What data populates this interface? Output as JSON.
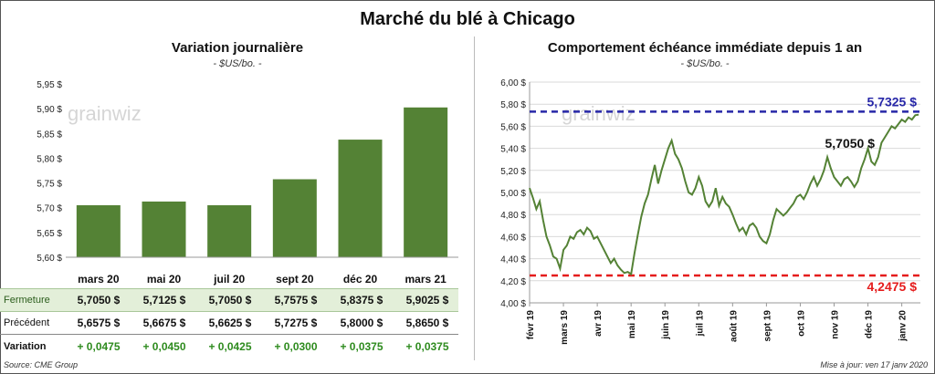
{
  "page": {
    "title": "Marché du blé à Chicago",
    "source": "Source: CME Group",
    "update": "Mise à jour: ven 17 janv 2020",
    "watermark": "grainwiz",
    "colors": {
      "bar": "#548235",
      "line": "#548235",
      "upper": "#2727a8",
      "lower": "#e51c1c",
      "close_row_bg": "#e3efd9",
      "variation": "#2e8b1e"
    }
  },
  "chart_data": [
    {
      "type": "bar",
      "title": "Variation journalière",
      "subtitle": "- $US/bo. -",
      "categories": [
        "mars 20",
        "mai 20",
        "juil 20",
        "sept 20",
        "déc 20",
        "mars 21"
      ],
      "values": [
        5.705,
        5.7125,
        5.705,
        5.7575,
        5.8375,
        5.9025
      ],
      "ylim": [
        5.6,
        5.95
      ],
      "yticks": [
        "5,60 $",
        "5,65 $",
        "5,70 $",
        "5,75 $",
        "5,80 $",
        "5,85 $",
        "5,90 $",
        "5,95 $"
      ],
      "grid": false
    },
    {
      "type": "line",
      "title": "Comportement échéance immédiate depuis 1 an",
      "subtitle": "- $US/bo. -",
      "ylim": [
        4.0,
        6.0
      ],
      "yticks": [
        "4,00 $",
        "4,20 $",
        "4,40 $",
        "4,60 $",
        "4,80 $",
        "5,00 $",
        "5,20 $",
        "5,40 $",
        "5,60 $",
        "5,80 $",
        "6,00 $"
      ],
      "xticks": [
        "févr 19",
        "mars 19",
        "avr 19",
        "mai 19",
        "juin 19",
        "juil 19",
        "août 19",
        "sept 19",
        "oct 19",
        "nov 19",
        "déc 19",
        "janv 20"
      ],
      "x_range": [
        0,
        11.55
      ],
      "x": [
        0,
        0.1,
        0.2,
        0.3,
        0.4,
        0.5,
        0.6,
        0.7,
        0.8,
        0.9,
        1.0,
        1.1,
        1.2,
        1.3,
        1.4,
        1.5,
        1.6,
        1.7,
        1.8,
        1.9,
        2.0,
        2.1,
        2.2,
        2.3,
        2.4,
        2.5,
        2.6,
        2.7,
        2.8,
        2.9,
        3.0,
        3.1,
        3.2,
        3.3,
        3.4,
        3.5,
        3.6,
        3.7,
        3.8,
        3.9,
        4.0,
        4.1,
        4.2,
        4.3,
        4.4,
        4.5,
        4.6,
        4.7,
        4.8,
        4.9,
        5.0,
        5.1,
        5.2,
        5.3,
        5.4,
        5.5,
        5.6,
        5.7,
        5.8,
        5.9,
        6.0,
        6.1,
        6.2,
        6.3,
        6.4,
        6.5,
        6.6,
        6.7,
        6.8,
        6.9,
        7.0,
        7.1,
        7.2,
        7.3,
        7.4,
        7.5,
        7.6,
        7.7,
        7.8,
        7.9,
        8.0,
        8.1,
        8.2,
        8.3,
        8.4,
        8.5,
        8.6,
        8.7,
        8.8,
        8.9,
        9.0,
        9.1,
        9.2,
        9.3,
        9.4,
        9.5,
        9.6,
        9.7,
        9.8,
        9.9,
        10.0,
        10.1,
        10.2,
        10.3,
        10.4,
        10.5,
        10.6,
        10.7,
        10.8,
        10.9,
        11.0,
        11.1,
        11.2,
        11.3,
        11.4,
        11.5
      ],
      "y": [
        5.04,
        4.95,
        4.85,
        4.92,
        4.75,
        4.6,
        4.52,
        4.42,
        4.4,
        4.31,
        4.48,
        4.52,
        4.6,
        4.58,
        4.64,
        4.66,
        4.62,
        4.68,
        4.65,
        4.58,
        4.6,
        4.54,
        4.48,
        4.42,
        4.36,
        4.4,
        4.34,
        4.3,
        4.27,
        4.28,
        4.26,
        4.45,
        4.62,
        4.78,
        4.9,
        4.98,
        5.12,
        5.25,
        5.08,
        5.2,
        5.3,
        5.4,
        5.47,
        5.35,
        5.3,
        5.22,
        5.1,
        5.0,
        4.98,
        5.04,
        5.14,
        5.06,
        4.92,
        4.87,
        4.92,
        5.04,
        4.88,
        4.96,
        4.9,
        4.87,
        4.8,
        4.72,
        4.65,
        4.68,
        4.62,
        4.7,
        4.72,
        4.68,
        4.6,
        4.56,
        4.54,
        4.62,
        4.75,
        4.85,
        4.82,
        4.79,
        4.82,
        4.86,
        4.9,
        4.96,
        4.98,
        4.94,
        5.0,
        5.08,
        5.14,
        5.06,
        5.12,
        5.2,
        5.32,
        5.22,
        5.14,
        5.1,
        5.06,
        5.12,
        5.14,
        5.1,
        5.05,
        5.1,
        5.22,
        5.3,
        5.4,
        5.28,
        5.25,
        5.32,
        5.45,
        5.5,
        5.55,
        5.6,
        5.58,
        5.62,
        5.66,
        5.64,
        5.68,
        5.66,
        5.7,
        5.705
      ],
      "hlines": [
        {
          "value": 5.7325,
          "label": "5,7325 $",
          "style": "dashed",
          "color": "#2727a8"
        },
        {
          "value": 4.2475,
          "label": "4,2475 $",
          "style": "dashed",
          "color": "#e51c1c"
        }
      ],
      "last_label": "5,7050 $"
    }
  ],
  "table": {
    "rows": [
      {
        "label": "Fermeture",
        "values": [
          "5,7050  $",
          "5,7125  $",
          "5,7050  $",
          "5,7575  $",
          "5,8375  $",
          "5,9025  $"
        ]
      },
      {
        "label": "Précédent",
        "values": [
          "5,6575  $",
          "5,6675  $",
          "5,6625  $",
          "5,7275  $",
          "5,8000  $",
          "5,8650  $"
        ]
      },
      {
        "label": "Variation",
        "values": [
          "+ 0,0475",
          "+ 0,0450",
          "+ 0,0425",
          "+ 0,0300",
          "+ 0,0375",
          "+ 0,0375"
        ]
      }
    ]
  }
}
